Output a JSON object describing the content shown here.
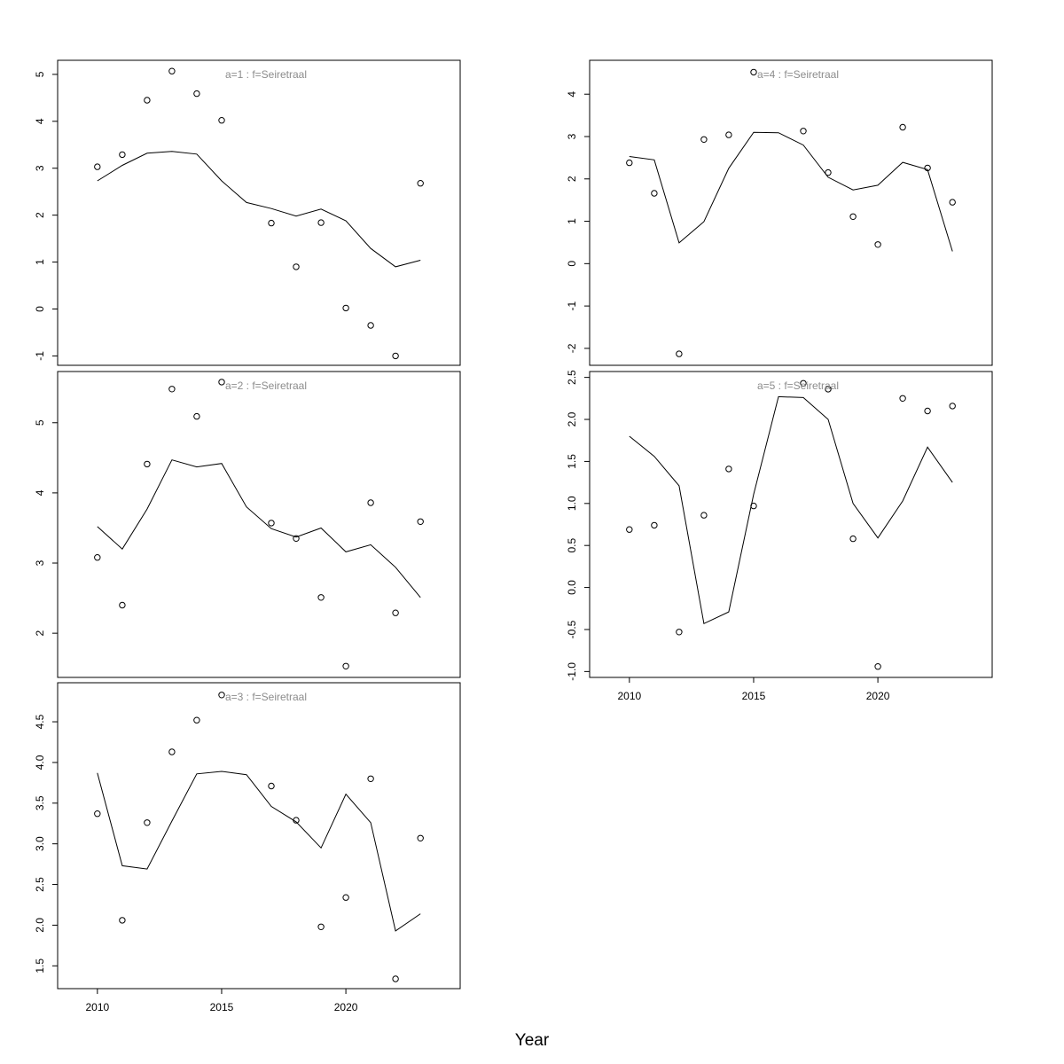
{
  "xlabel": "Year",
  "colors": {
    "title": "#8c8c8c",
    "line": "#000000",
    "point": "#000000"
  },
  "chart_data": [
    {
      "type": "scatter",
      "title": "a=1  :  f=Seiretraal",
      "x": [
        2010,
        2011,
        2012,
        2013,
        2014,
        2015,
        2016,
        2017,
        2018,
        2019,
        2020,
        2021,
        2022,
        2023
      ],
      "observed": [
        3.03,
        3.29,
        4.45,
        5.07,
        4.59,
        4.02,
        null,
        1.83,
        0.9,
        1.84,
        0.02,
        -0.35,
        -1.0,
        2.68
      ],
      "fitted": [
        2.73,
        3.06,
        3.32,
        3.36,
        3.3,
        2.73,
        2.27,
        2.14,
        1.98,
        2.13,
        1.88,
        1.29,
        0.9,
        1.04
      ],
      "ylim": [
        -1.2,
        5.3
      ],
      "yticks": [
        -1,
        0,
        1,
        2,
        3,
        4,
        5
      ],
      "ytick_labels": [
        "-1",
        "0",
        "1",
        "2",
        "3",
        "4",
        "5"
      ],
      "xticks": [],
      "xtick_labels": []
    },
    {
      "type": "scatter",
      "title": "a=2  :  f=Seiretraal",
      "x": [
        2010,
        2011,
        2012,
        2013,
        2014,
        2015,
        2016,
        2017,
        2018,
        2019,
        2020,
        2021,
        2022,
        2023
      ],
      "observed": [
        3.08,
        2.4,
        4.41,
        5.48,
        5.09,
        5.58,
        null,
        3.57,
        3.35,
        2.51,
        1.53,
        3.86,
        2.29,
        3.59
      ],
      "fitted": [
        3.52,
        3.2,
        3.77,
        4.47,
        4.37,
        4.42,
        3.8,
        3.49,
        3.37,
        3.5,
        3.16,
        3.26,
        2.94,
        2.51
      ],
      "ylim": [
        1.37,
        5.73
      ],
      "yticks": [
        2,
        3,
        4,
        5
      ],
      "ytick_labels": [
        "2",
        "3",
        "4",
        "5"
      ],
      "xticks": [],
      "xtick_labels": []
    },
    {
      "type": "scatter",
      "title": "a=3  :  f=Seiretraal",
      "x": [
        2010,
        2011,
        2012,
        2013,
        2014,
        2015,
        2016,
        2017,
        2018,
        2019,
        2020,
        2021,
        2022,
        2023
      ],
      "observed": [
        3.37,
        2.06,
        3.26,
        4.13,
        4.52,
        4.83,
        null,
        3.71,
        3.29,
        1.98,
        2.34,
        3.8,
        1.34,
        3.07
      ],
      "fitted": [
        3.87,
        2.73,
        2.69,
        3.28,
        3.86,
        3.89,
        3.85,
        3.46,
        3.27,
        2.95,
        3.61,
        3.26,
        1.93,
        2.14
      ],
      "ylim": [
        1.22,
        4.98
      ],
      "yticks": [
        1.5,
        2.0,
        2.5,
        3.0,
        3.5,
        4.0,
        4.5
      ],
      "ytick_labels": [
        "1.5",
        "2.0",
        "2.5",
        "3.0",
        "3.5",
        "4.0",
        "4.5"
      ],
      "xticks": [
        2010,
        2015,
        2020
      ],
      "xtick_labels": [
        "2010",
        "2015",
        "2020"
      ]
    },
    {
      "type": "scatter",
      "title": "a=4  :  f=Seiretraal",
      "x": [
        2010,
        2011,
        2012,
        2013,
        2014,
        2015,
        2016,
        2017,
        2018,
        2019,
        2020,
        2021,
        2022,
        2023
      ],
      "observed": [
        2.38,
        1.66,
        -2.13,
        2.93,
        3.04,
        4.52,
        null,
        3.13,
        2.15,
        1.11,
        0.45,
        3.22,
        2.26,
        1.45
      ],
      "fitted": [
        2.53,
        2.45,
        0.49,
        0.99,
        2.25,
        3.1,
        3.09,
        2.8,
        2.04,
        1.74,
        1.85,
        2.39,
        2.22,
        0.29
      ],
      "ylim": [
        -2.4,
        4.8
      ],
      "yticks": [
        -2,
        -1,
        0,
        1,
        2,
        3,
        4
      ],
      "ytick_labels": [
        "-2",
        "-1",
        "0",
        "1",
        "2",
        "3",
        "4"
      ],
      "xticks": [],
      "xtick_labels": []
    },
    {
      "type": "scatter",
      "title": "a=5  :  f=Seiretraal",
      "x": [
        2010,
        2011,
        2012,
        2013,
        2014,
        2015,
        2016,
        2017,
        2018,
        2019,
        2020,
        2021,
        2022,
        2023
      ],
      "observed": [
        0.69,
        0.74,
        -0.53,
        0.86,
        1.41,
        0.97,
        null,
        2.43,
        2.36,
        0.58,
        -0.94,
        2.25,
        2.1,
        2.16
      ],
      "fitted": [
        1.8,
        1.56,
        1.21,
        -0.43,
        -0.29,
        1.11,
        2.27,
        2.26,
        2.0,
        1.0,
        0.59,
        1.03,
        1.67,
        1.25
      ],
      "ylim": [
        -1.07,
        2.57
      ],
      "yticks": [
        -1.0,
        -0.5,
        0.0,
        0.5,
        1.0,
        1.5,
        2.0,
        2.5
      ],
      "ytick_labels": [
        "-1.0",
        "-0.5",
        "0.0",
        "0.5",
        "1.0",
        "1.5",
        "2.0",
        "2.5"
      ],
      "xticks": [
        2010,
        2015,
        2020
      ],
      "xtick_labels": [
        "2010",
        "2015",
        "2020"
      ]
    }
  ]
}
